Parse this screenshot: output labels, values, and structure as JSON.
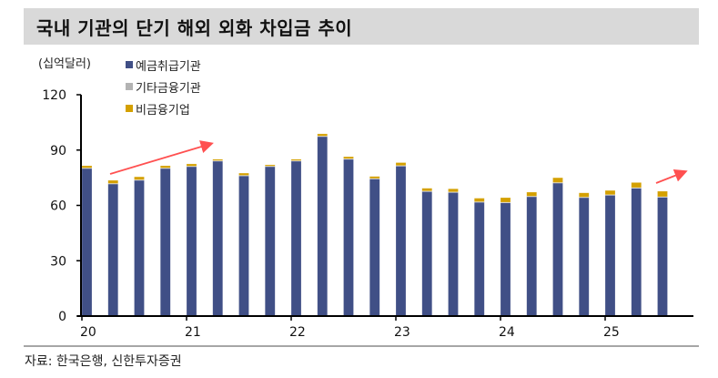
{
  "title": "국내 기관의 단기 해외 외화 차입금 추이",
  "source": "자료: 한국은행, 신한투자증권",
  "chart_data": {
    "type": "bar",
    "stacked": true,
    "title": "국내 기관의 단기 해외 외화 차입금 추이",
    "ylabel": "(십억달러)",
    "xlabel": "",
    "ylim": [
      0,
      120
    ],
    "yticks": [
      0,
      30,
      60,
      90,
      120
    ],
    "xtick_labels": [
      "20",
      "21",
      "22",
      "23",
      "24",
      "25"
    ],
    "categories": [
      "20Q1",
      "20Q2",
      "20Q3",
      "20Q4",
      "21Q1",
      "21Q2",
      "21Q3",
      "21Q4",
      "22Q1",
      "22Q2",
      "22Q3",
      "22Q4",
      "23Q1",
      "23Q2",
      "23Q3",
      "23Q4",
      "24Q1",
      "24Q2",
      "24Q3",
      "24Q4",
      "25Q1",
      "25Q2",
      "25Q3"
    ],
    "series": [
      {
        "name": "예금취급기관",
        "color": "#404f86",
        "values": [
          80.0,
          71.6,
          73.6,
          80.0,
          81.0,
          84.0,
          76.0,
          81.0,
          84.0,
          97.3,
          85.0,
          74.3,
          81.3,
          67.5,
          67.0,
          61.7,
          61.4,
          64.7,
          72.1,
          64.2,
          65.5,
          69.3,
          64.4
        ]
      },
      {
        "name": "기타금융기관",
        "color": "#b3b3b3",
        "values": [
          0.3,
          0.3,
          0.3,
          0.3,
          0.3,
          0.3,
          0.3,
          0.3,
          0.3,
          0.3,
          0.3,
          0.3,
          0.3,
          0.3,
          0.3,
          0.3,
          0.3,
          0.3,
          0.3,
          0.3,
          0.3,
          0.3,
          0.3
        ]
      },
      {
        "name": "비금융기업",
        "color": "#d4a000",
        "values": [
          1.2,
          1.7,
          1.6,
          1.2,
          1.2,
          0.7,
          1.2,
          0.7,
          0.7,
          1.2,
          1.1,
          1.1,
          1.6,
          1.5,
          1.7,
          1.9,
          2.5,
          2.2,
          2.6,
          2.3,
          2.3,
          2.8,
          3.0
        ]
      }
    ],
    "grid": false,
    "legend": "top-left",
    "annotations": [
      {
        "type": "arrow",
        "color": "#ff5050",
        "from_category": "20Q2",
        "to_category": "21Q2",
        "direction": "up"
      },
      {
        "type": "arrow",
        "color": "#ff5050",
        "from_category": "25Q3",
        "direction": "up"
      }
    ]
  }
}
